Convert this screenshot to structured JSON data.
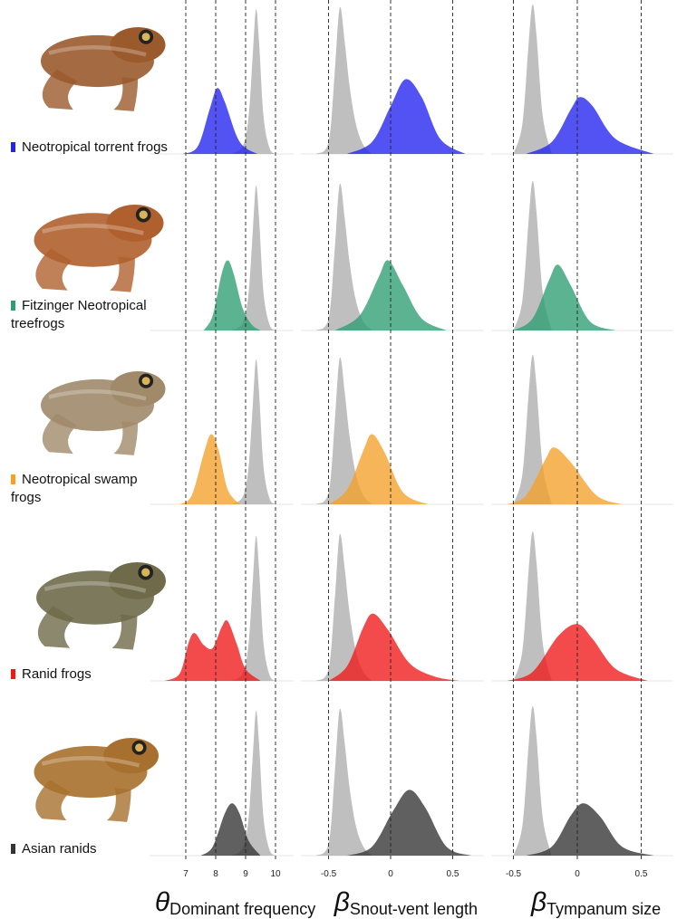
{
  "chart_data": [
    {
      "type": "density",
      "xlabel": {
        "symbol": "θ",
        "subscript": "Dominant frequency"
      },
      "xlim": [
        6.1,
        10.6
      ],
      "xticks": [
        7,
        8,
        9,
        10
      ],
      "ylim": [
        0,
        1
      ],
      "reference": {
        "color": "#b4b4b4",
        "x": [
          8.5,
          8.9,
          9.1,
          9.25,
          9.35,
          9.45,
          9.6,
          9.8,
          10.0
        ],
        "values": [
          0,
          0.05,
          0.25,
          0.7,
          0.97,
          0.75,
          0.25,
          0.04,
          0
        ]
      },
      "series": [
        {
          "name": "Neotropical torrent frogs",
          "color": "#2323f0",
          "x": [
            6.9,
            7.4,
            7.8,
            8.05,
            8.3,
            8.7,
            9.0,
            9.4
          ],
          "values": [
            0,
            0.05,
            0.3,
            0.44,
            0.35,
            0.12,
            0.04,
            0
          ]
        },
        {
          "name": "Fitzinger Neotropical treefrogs",
          "color": "#2e9e72",
          "x": [
            7.6,
            7.9,
            8.2,
            8.4,
            8.6,
            8.9,
            9.2,
            9.5
          ],
          "values": [
            0,
            0.1,
            0.38,
            0.47,
            0.38,
            0.15,
            0.04,
            0
          ]
        },
        {
          "name": "Neotropical swamp frogs",
          "color": "#f5a02a",
          "x": [
            6.8,
            7.2,
            7.6,
            7.85,
            8.1,
            8.4,
            8.8
          ],
          "values": [
            0,
            0.06,
            0.34,
            0.47,
            0.36,
            0.1,
            0
          ]
        },
        {
          "name": "Ranid frogs",
          "color": "#f01818",
          "x": [
            6.3,
            6.8,
            7.1,
            7.3,
            7.6,
            7.9,
            8.2,
            8.4,
            8.7,
            9.0,
            9.5
          ],
          "values": [
            0,
            0.05,
            0.26,
            0.32,
            0.24,
            0.22,
            0.36,
            0.4,
            0.25,
            0.08,
            0
          ]
        },
        {
          "name": "Asian ranids",
          "color": "#333333",
          "x": [
            7.5,
            7.9,
            8.3,
            8.55,
            8.8,
            9.1,
            9.5
          ],
          "values": [
            0,
            0.06,
            0.28,
            0.35,
            0.28,
            0.1,
            0
          ]
        }
      ]
    },
    {
      "type": "density",
      "xlabel": {
        "symbol": "β",
        "subscript": "Snout-vent length"
      },
      "xlim": [
        -0.65,
        0.75
      ],
      "xticks": [
        -0.5,
        0,
        0.5
      ],
      "ylim": [
        0,
        1
      ],
      "reference": {
        "color": "#b4b4b4",
        "x": [
          -0.6,
          -0.5,
          -0.45,
          -0.41,
          -0.37,
          -0.33,
          -0.28,
          -0.22,
          -0.15
        ],
        "values": [
          0,
          0.08,
          0.55,
          0.98,
          0.75,
          0.45,
          0.2,
          0.06,
          0
        ]
      },
      "series": [
        {
          "color": "#2323f0",
          "x": [
            -0.35,
            -0.15,
            0,
            0.12,
            0.25,
            0.4,
            0.6
          ],
          "values": [
            0,
            0.08,
            0.32,
            0.5,
            0.38,
            0.1,
            0
          ]
        },
        {
          "color": "#2e9e72",
          "x": [
            -0.45,
            -0.25,
            -0.1,
            -0.02,
            0.1,
            0.25,
            0.45
          ],
          "values": [
            0,
            0.1,
            0.35,
            0.47,
            0.3,
            0.08,
            0
          ]
        },
        {
          "color": "#f5a02a",
          "x": [
            -0.5,
            -0.35,
            -0.22,
            -0.15,
            -0.05,
            0.1,
            0.3
          ],
          "values": [
            0,
            0.1,
            0.36,
            0.47,
            0.35,
            0.08,
            0
          ]
        },
        {
          "color": "#f01818",
          "x": [
            -0.5,
            -0.35,
            -0.22,
            -0.14,
            -0.02,
            0.15,
            0.35,
            0.55
          ],
          "values": [
            0,
            0.1,
            0.36,
            0.45,
            0.34,
            0.12,
            0.03,
            0
          ]
        },
        {
          "color": "#333333",
          "x": [
            -0.35,
            -0.15,
            0.02,
            0.15,
            0.28,
            0.45,
            0.65
          ],
          "values": [
            0,
            0.06,
            0.3,
            0.44,
            0.32,
            0.06,
            0
          ]
        }
      ]
    },
    {
      "type": "density",
      "xlabel": {
        "symbol": "β",
        "subscript": "Tympanum size"
      },
      "xlim": [
        -0.6,
        0.75
      ],
      "xticks": [
        -0.5,
        0,
        0.5
      ],
      "ylim": [
        0,
        1
      ],
      "reference": {
        "color": "#b4b4b4",
        "x": [
          -0.5,
          -0.43,
          -0.38,
          -0.35,
          -0.32,
          -0.27,
          -0.2
        ],
        "values": [
          0,
          0.2,
          0.75,
          1.0,
          0.8,
          0.25,
          0
        ]
      },
      "series": [
        {
          "color": "#2323f0",
          "x": [
            -0.4,
            -0.2,
            -0.05,
            0.02,
            0.12,
            0.3,
            0.6
          ],
          "values": [
            0,
            0.08,
            0.3,
            0.38,
            0.32,
            0.1,
            0
          ]
        },
        {
          "color": "#2e9e72",
          "x": [
            -0.5,
            -0.35,
            -0.22,
            -0.15,
            -0.05,
            0.1,
            0.3
          ],
          "values": [
            0,
            0.08,
            0.34,
            0.44,
            0.3,
            0.06,
            0
          ]
        },
        {
          "color": "#f5a02a",
          "x": [
            -0.55,
            -0.4,
            -0.25,
            -0.18,
            -0.05,
            0.15,
            0.35
          ],
          "values": [
            0,
            0.06,
            0.3,
            0.38,
            0.28,
            0.06,
            0
          ]
        },
        {
          "color": "#f01818",
          "x": [
            -0.55,
            -0.35,
            -0.15,
            0,
            0.12,
            0.3,
            0.55
          ],
          "values": [
            0,
            0.06,
            0.3,
            0.38,
            0.28,
            0.08,
            0
          ]
        },
        {
          "color": "#333333",
          "x": [
            -0.4,
            -0.2,
            -0.05,
            0.05,
            0.18,
            0.35,
            0.6
          ],
          "values": [
            0,
            0.06,
            0.27,
            0.35,
            0.26,
            0.06,
            0
          ]
        }
      ]
    }
  ]
}
